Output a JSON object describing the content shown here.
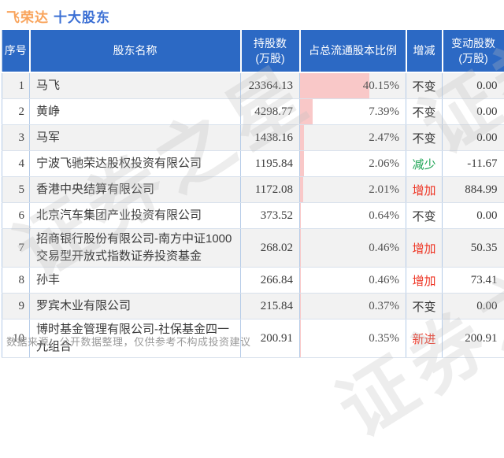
{
  "title": {
    "stock": "飞荣达",
    "suffix": "十大股东"
  },
  "table": {
    "headers": {
      "index": "序号",
      "name": "股东名称",
      "shares": "持股数",
      "shares_unit": "(万股)",
      "ratio": "占总流通股本比例",
      "change": "增减",
      "delta": "变动股数",
      "delta_unit": "(万股)"
    },
    "rows": [
      {
        "index": 1,
        "name": "马飞",
        "shares": "23364.13",
        "ratio": "40.15%",
        "ratio_value": 40.15,
        "change": "不变",
        "change_type": "flat",
        "delta": "0.00"
      },
      {
        "index": 2,
        "name": "黄峥",
        "shares": "4298.77",
        "ratio": "7.39%",
        "ratio_value": 7.39,
        "change": "不变",
        "change_type": "flat",
        "delta": "0.00"
      },
      {
        "index": 3,
        "name": "马军",
        "shares": "1438.16",
        "ratio": "2.47%",
        "ratio_value": 2.47,
        "change": "不变",
        "change_type": "flat",
        "delta": "0.00"
      },
      {
        "index": 4,
        "name": "宁波飞驰荣达股权投资有限公司",
        "shares": "1195.84",
        "ratio": "2.06%",
        "ratio_value": 2.06,
        "change": "减少",
        "change_type": "down",
        "delta": "-11.67"
      },
      {
        "index": 5,
        "name": "香港中央结算有限公司",
        "shares": "1172.08",
        "ratio": "2.01%",
        "ratio_value": 2.01,
        "change": "增加",
        "change_type": "up",
        "delta": "884.99"
      },
      {
        "index": 6,
        "name": "北京汽车集团产业投资有限公司",
        "shares": "373.52",
        "ratio": "0.64%",
        "ratio_value": 0.64,
        "change": "不变",
        "change_type": "flat",
        "delta": "0.00"
      },
      {
        "index": 7,
        "name": "招商银行股份有限公司-南方中证1000交易型开放式指数证券投资基金",
        "shares": "268.02",
        "ratio": "0.46%",
        "ratio_value": 0.46,
        "change": "增加",
        "change_type": "up",
        "delta": "50.35"
      },
      {
        "index": 8,
        "name": "孙丰",
        "shares": "266.84",
        "ratio": "0.46%",
        "ratio_value": 0.46,
        "change": "增加",
        "change_type": "up",
        "delta": "73.41"
      },
      {
        "index": 9,
        "name": "罗宾木业有限公司",
        "shares": "215.84",
        "ratio": "0.37%",
        "ratio_value": 0.37,
        "change": "不变",
        "change_type": "flat",
        "delta": "0.00"
      },
      {
        "index": 10,
        "name": "博时基金管理有限公司-社保基金四一九组合",
        "shares": "200.91",
        "ratio": "0.35%",
        "ratio_value": 0.35,
        "change": "新进",
        "change_type": "new",
        "delta": "200.91"
      }
    ]
  },
  "footer": {
    "source_note": "数据来源：公开数据整理，仅供参考不构成投资建议"
  },
  "watermark": {
    "text": "证券之星"
  },
  "colors": {
    "header_bg": "#2c69c4",
    "title_orange": "#f9a45c",
    "title_blue": "#3b6fd4",
    "bar_pink": "#f9c8c8",
    "up_red": "#ee3322",
    "down_green": "#1ba352",
    "row_stripe": "#f2f2f2"
  }
}
